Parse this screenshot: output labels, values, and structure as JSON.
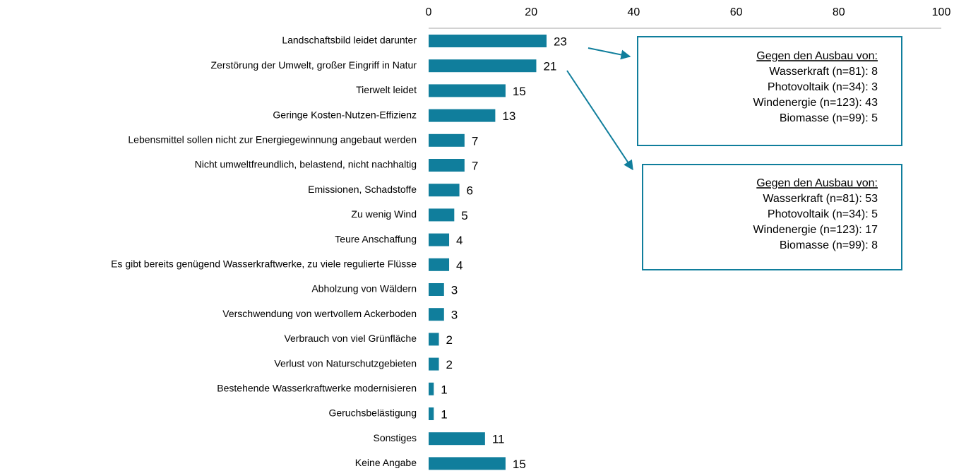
{
  "chart_data": {
    "type": "barh",
    "categories": [
      "Landschaftsbild leidet darunter",
      "Zerstörung der Umwelt, großer Eingriff in Natur",
      "Tierwelt leidet",
      "Geringe Kosten-Nutzen-Effizienz",
      "Lebensmittel sollen nicht zur Energiegewinnung angebaut werden",
      "Nicht umweltfreundlich, belastend, nicht nachhaltig",
      "Emissionen, Schadstoffe",
      "Zu wenig Wind",
      "Teure Anschaffung",
      "Es gibt bereits genügend Wasserkraftwerke, zu viele regulierte Flüsse",
      "Abholzung von Wäldern",
      "Verschwendung von wertvollem Ackerboden",
      "Verbrauch von viel Grünfläche",
      "Verlust von Naturschutzgebieten",
      "Bestehende Wasserkraftwerke modernisieren",
      "Geruchsbelästigung",
      "Sonstiges",
      "Keine Angabe"
    ],
    "values": [
      23,
      21,
      15,
      13,
      7,
      7,
      6,
      5,
      4,
      4,
      3,
      3,
      2,
      2,
      1,
      1,
      11,
      15
    ],
    "color": "#107e9c",
    "xlim": [
      0,
      100
    ],
    "xticks": [
      0,
      20,
      40,
      60,
      80,
      100
    ],
    "annotations": [
      {
        "title": "Gegen den Ausbau von:",
        "lines": [
          "Wasserkraft (n=81): 8",
          "Photovoltaik (n=34): 3",
          "Windenergie (n=123): 43",
          "Biomasse (n=99): 5"
        ]
      },
      {
        "title": "Gegen den Ausbau von:",
        "lines": [
          "Wasserkraft (n=81): 53",
          "Photovoltaik (n=34): 5",
          "Windenergie (n=123): 17",
          "Biomasse (n=99): 8"
        ]
      }
    ]
  }
}
